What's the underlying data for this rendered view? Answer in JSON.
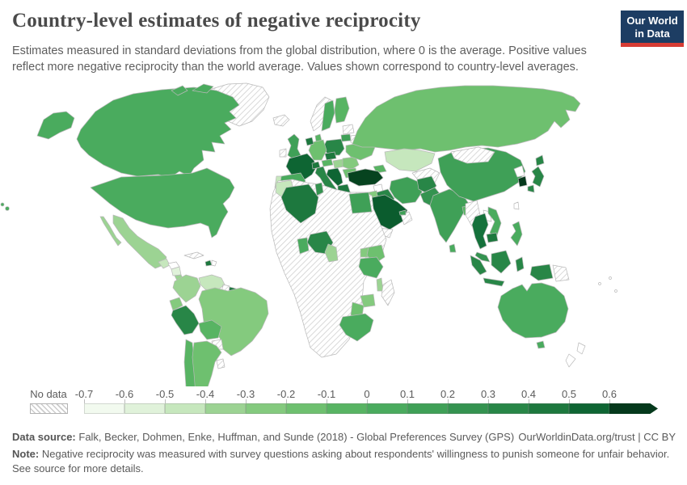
{
  "header": {
    "title": "Country-level estimates of negative reciprocity",
    "subtitle": "Estimates measured in standard deviations from the global distribution, where 0 is the average. Positive values reflect more negative reciprocity than the world average. Values shown correspond to country-level averages.",
    "logo": {
      "line1": "Our World",
      "line2": "in Data"
    }
  },
  "theme": {
    "logo_navy": "#1d3d63",
    "logo_red": "#d73c34",
    "border_gray": "#b9b9b9",
    "text_gray": "#5a5a5a"
  },
  "legend": {
    "no_data_label": "No data",
    "tick_labels": [
      "-0.7",
      "-0.6",
      "-0.5",
      "-0.4",
      "-0.3",
      "-0.2",
      "-0.1",
      "0",
      "0.1",
      "0.2",
      "0.3",
      "0.4",
      "0.5",
      "0.6"
    ],
    "segment_colors": [
      "#f2faef",
      "#e0f2da",
      "#c6e7bd",
      "#9cd393",
      "#84ca7e",
      "#6ec06f",
      "#58b463",
      "#4aab5e",
      "#3fa057",
      "#349350",
      "#288647",
      "#1d783e",
      "#0e6533",
      "#05391c"
    ]
  },
  "footer": {
    "source_label": "Data source:",
    "source_text": "Falk, Becker, Dohmen, Enke, Huffman, and Sunde (2018) - Global Preferences Survey (GPS)",
    "link_text": "OurWorldinData.org/trust | CC BY",
    "note_label": "Note:",
    "note_text": "Negative reciprocity was measured with survey questions asking about respondents' willingness to punish someone for unfair behavior. See source for more details."
  },
  "chart_data": {
    "type": "heatmap",
    "subtype": "choropleth-world-map",
    "title": "Country-level estimates of negative reciprocity",
    "unit": "standard deviations from the global distribution (0 = world average)",
    "bin_edges": [
      -0.7,
      -0.6,
      -0.5,
      -0.4,
      -0.3,
      -0.2,
      -0.1,
      0,
      0.1,
      0.2,
      0.3,
      0.4,
      0.5,
      0.6
    ],
    "open_ended_max": true,
    "no_data_style": "white with diagonal gray hatching",
    "legend_position": "bottom",
    "countries": [
      {
        "id": "canada",
        "name": "Canada",
        "color": "#4aab5e"
      },
      {
        "id": "usa",
        "name": "United States",
        "color": "#4aab5e"
      },
      {
        "id": "hawaii",
        "name": "United States (Hawaii)",
        "color": "#4aab5e"
      },
      {
        "id": "greenland",
        "name": "Greenland",
        "color": "hatch"
      },
      {
        "id": "mexico",
        "name": "Mexico",
        "color": "#9cd393"
      },
      {
        "id": "cuba",
        "name": "Cuba",
        "color": "hatch"
      },
      {
        "id": "guatemala",
        "name": "Guatemala",
        "color": "#c6e7bd"
      },
      {
        "id": "honduras",
        "name": "Honduras",
        "color": "#ffffff"
      },
      {
        "id": "nicaragua",
        "name": "Nicaragua",
        "color": "#e0f2da"
      },
      {
        "id": "costa-rica",
        "name": "Costa Rica",
        "color": "#9cd393"
      },
      {
        "id": "panama",
        "name": "Panama",
        "color": "#84ca7e"
      },
      {
        "id": "haiti",
        "name": "Haiti",
        "color": "#1d783e"
      },
      {
        "id": "dominican-republic",
        "name": "Dominican Republic",
        "color": "#ffffff"
      },
      {
        "id": "colombia",
        "name": "Colombia",
        "color": "#9cd393"
      },
      {
        "id": "venezuela",
        "name": "Venezuela",
        "color": "#c6e7bd"
      },
      {
        "id": "guyana",
        "name": "Guyana",
        "color": "hatch"
      },
      {
        "id": "suriname",
        "name": "Suriname",
        "color": "#1d783e"
      },
      {
        "id": "french-guiana",
        "name": "French Guiana",
        "color": "hatch"
      },
      {
        "id": "ecuador",
        "name": "Ecuador",
        "color": "#84ca7e"
      },
      {
        "id": "peru",
        "name": "Peru",
        "color": "#288647"
      },
      {
        "id": "brazil",
        "name": "Brazil",
        "color": "#84ca7e"
      },
      {
        "id": "bolivia",
        "name": "Bolivia",
        "color": "#58b463"
      },
      {
        "id": "paraguay",
        "name": "Paraguay",
        "color": "hatch"
      },
      {
        "id": "chile",
        "name": "Chile",
        "color": "#58b463"
      },
      {
        "id": "argentina",
        "name": "Argentina",
        "color": "#6ec06f"
      },
      {
        "id": "uruguay",
        "name": "Uruguay",
        "color": "hatch"
      },
      {
        "id": "iceland",
        "name": "Iceland",
        "color": "hatch"
      },
      {
        "id": "uk",
        "name": "United Kingdom",
        "color": "#3fa057"
      },
      {
        "id": "ireland",
        "name": "Ireland",
        "color": "hatch"
      },
      {
        "id": "norway",
        "name": "Norway",
        "color": "hatch"
      },
      {
        "id": "sweden",
        "name": "Sweden",
        "color": "#4aab5e"
      },
      {
        "id": "finland",
        "name": "Finland",
        "color": "#58b463"
      },
      {
        "id": "denmark",
        "name": "Denmark",
        "color": "#58b463"
      },
      {
        "id": "estonia-latvia",
        "name": "Estonia / Latvia",
        "color": "hatch"
      },
      {
        "id": "lithuania",
        "name": "Lithuania",
        "color": "#3fa057"
      },
      {
        "id": "belarus",
        "name": "Belarus",
        "color": "hatch"
      },
      {
        "id": "poland",
        "name": "Poland",
        "color": "#288647"
      },
      {
        "id": "germany",
        "name": "Germany",
        "color": "#6ec06f"
      },
      {
        "id": "netherlands",
        "name": "Netherlands",
        "color": "#1d783e"
      },
      {
        "id": "france",
        "name": "France",
        "color": "#0e6533"
      },
      {
        "id": "switzerland",
        "name": "Switzerland",
        "color": "#1d783e"
      },
      {
        "id": "austria",
        "name": "Austria",
        "color": "#58b463"
      },
      {
        "id": "czechia",
        "name": "Czechia",
        "color": "#1d783e"
      },
      {
        "id": "italy",
        "name": "Italy",
        "color": "#288647"
      },
      {
        "id": "spain",
        "name": "Spain",
        "color": "#4aab5e"
      },
      {
        "id": "portugal",
        "name": "Portugal",
        "color": "#c6e7bd"
      },
      {
        "id": "hungary",
        "name": "Hungary",
        "color": "#9cd393"
      },
      {
        "id": "romania",
        "name": "Romania",
        "color": "#84ca7e"
      },
      {
        "id": "bulgaria",
        "name": "Bulgaria",
        "color": "#6ec06f"
      },
      {
        "id": "balkans",
        "name": "Croatia / Bosnia and Herzegovina / Serbia",
        "color": "#0e6533"
      },
      {
        "id": "greece",
        "name": "Greece",
        "color": "#1d783e"
      },
      {
        "id": "ukraine",
        "name": "Ukraine",
        "color": "#6ec06f"
      },
      {
        "id": "russia",
        "name": "Russia",
        "color": "#6ec06f"
      },
      {
        "id": "kazakhstan",
        "name": "Kazakhstan",
        "color": "#c6e7bd"
      },
      {
        "id": "central-asia",
        "name": "Central Asia",
        "color": "hatch"
      },
      {
        "id": "caucasus",
        "name": "Georgia / Armenia",
        "color": "#58b463"
      },
      {
        "id": "turkey",
        "name": "Turkey",
        "color": "#06431f"
      },
      {
        "id": "syria",
        "name": "Syria",
        "color": "#ffffff"
      },
      {
        "id": "iraq",
        "name": "Iraq",
        "color": "#288647"
      },
      {
        "id": "iran",
        "name": "Iran",
        "color": "#3fa057"
      },
      {
        "id": "jordan",
        "name": "Jordan",
        "color": "#84ca7e"
      },
      {
        "id": "israel",
        "name": "Israel",
        "color": "#c6e7bd"
      },
      {
        "id": "saudi-arabia",
        "name": "Saudi Arabia",
        "color": "#0b5c2e"
      },
      {
        "id": "yemen",
        "name": "Yemen",
        "color": "hatch"
      },
      {
        "id": "oman",
        "name": "Oman",
        "color": "hatch"
      },
      {
        "id": "uae",
        "name": "United Arab Emirates",
        "color": "#3fa057"
      },
      {
        "id": "africa-nodata",
        "name": "Africa (no-data region)",
        "color": "hatch"
      },
      {
        "id": "morocco",
        "name": "Morocco",
        "color": "#c6e7bd"
      },
      {
        "id": "algeria",
        "name": "Algeria",
        "color": "#1d783e"
      },
      {
        "id": "tunisia",
        "name": "Tunisia",
        "color": "#349350"
      },
      {
        "id": "egypt",
        "name": "Egypt",
        "color": "#3fa057"
      },
      {
        "id": "nigeria",
        "name": "Nigeria",
        "color": "#288647"
      },
      {
        "id": "ghana",
        "name": "Ghana",
        "color": "#4aab5e"
      },
      {
        "id": "cameroon",
        "name": "Cameroon",
        "color": "#9cd393"
      },
      {
        "id": "kenya",
        "name": "Kenya",
        "color": "#6ec06f"
      },
      {
        "id": "uganda",
        "name": "Uganda",
        "color": "#84ca7e"
      },
      {
        "id": "tanzania",
        "name": "Tanzania",
        "color": "#4aab5e"
      },
      {
        "id": "malawi",
        "name": "Malawi",
        "color": "#9cd393"
      },
      {
        "id": "zimbabwe",
        "name": "Zimbabwe",
        "color": "#84ca7e"
      },
      {
        "id": "botswana",
        "name": "Botswana",
        "color": "#6ec06f"
      },
      {
        "id": "south-africa",
        "name": "South Africa",
        "color": "#4aab5e"
      },
      {
        "id": "madagascar",
        "name": "Madagascar",
        "color": "hatch"
      },
      {
        "id": "afghanistan",
        "name": "Afghanistan",
        "color": "#288647"
      },
      {
        "id": "pakistan",
        "name": "Pakistan",
        "color": "#349350"
      },
      {
        "id": "india",
        "name": "India",
        "color": "#3fa057"
      },
      {
        "id": "sri-lanka",
        "name": "Sri Lanka",
        "color": "#4aab5e"
      },
      {
        "id": "bangladesh",
        "name": "Bangladesh",
        "color": "#58b463"
      },
      {
        "id": "china",
        "name": "China",
        "color": "#3fa057"
      },
      {
        "id": "mongolia",
        "name": "Mongolia",
        "color": "hatch"
      },
      {
        "id": "north-korea",
        "name": "North Korea",
        "color": "#ffffff"
      },
      {
        "id": "south-korea",
        "name": "South Korea",
        "color": "#05391c"
      },
      {
        "id": "japan",
        "name": "Japan",
        "color": "#288647"
      },
      {
        "id": "taiwan",
        "name": "Taiwan",
        "color": "#ffffff"
      },
      {
        "id": "myanmar",
        "name": "Myanmar",
        "color": "hatch"
      },
      {
        "id": "thailand",
        "name": "Thailand",
        "color": "#15713b"
      },
      {
        "id": "laos",
        "name": "Laos",
        "color": "#ffffff"
      },
      {
        "id": "vietnam",
        "name": "Vietnam",
        "color": "#4aab5e"
      },
      {
        "id": "cambodia",
        "name": "Cambodia",
        "color": "#1d783e"
      },
      {
        "id": "malaysia",
        "name": "Malaysia",
        "color": "#349350"
      },
      {
        "id": "philippines",
        "name": "Philippines",
        "color": "#4aab5e"
      },
      {
        "id": "indonesia",
        "name": "Indonesia",
        "color": "#288647"
      },
      {
        "id": "papua-new-guinea",
        "name": "Papua New Guinea",
        "color": "hatch"
      },
      {
        "id": "australia",
        "name": "Australia",
        "color": "#4aab5e"
      },
      {
        "id": "new-zealand",
        "name": "New Zealand",
        "color": "#ffffff"
      },
      {
        "id": "pacific-islands",
        "name": "Pacific islands",
        "color": "hatch"
      }
    ]
  }
}
